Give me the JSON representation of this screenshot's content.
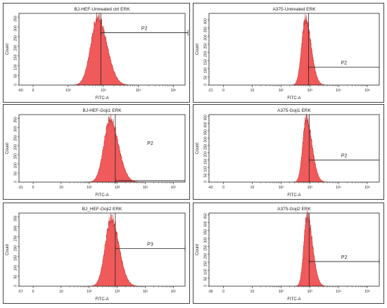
{
  "chart_data": [
    {
      "type": "area",
      "title": "BJ-HEF-Untreated ctrl ERK",
      "xlabel": "FITC-A",
      "ylabel": "Count",
      "x_scale": "log",
      "x_axis_start_label": "-60",
      "x_ticks": [
        "0",
        "10²",
        "10³",
        "10⁴",
        "10⁵"
      ],
      "y_ticks": [
        "0",
        "50",
        "100",
        "150",
        "200",
        "250",
        "300",
        "350"
      ],
      "ylim": [
        0,
        370
      ],
      "histogram": {
        "peak_x": 700,
        "peak_count": 345,
        "sigma_left": 0.2,
        "sigma_right": 0.26
      },
      "gate": {
        "label": "P2",
        "x_start": 850,
        "x_end": 260000,
        "count_level": 270,
        "x_end_open": false
      },
      "marker_x": 850,
      "fill_color": "#f05a5a"
    },
    {
      "type": "area",
      "title": "A375-Untreated ERK",
      "xlabel": "FITC-A",
      "ylabel": "Count",
      "x_scale": "log",
      "x_axis_start_label": "-21",
      "x_ticks": [
        "0",
        "10",
        "10²",
        "10³",
        "10⁴",
        "10⁵"
      ],
      "y_ticks": [
        "0",
        "50",
        "100",
        "150",
        "200",
        "250",
        "300",
        "350",
        "400"
      ],
      "ylim": [
        0,
        440
      ],
      "histogram": {
        "peak_x": 700,
        "peak_count": 400,
        "sigma_left": 0.13,
        "sigma_right": 0.2
      },
      "gate": {
        "label": "P2",
        "x_start": 900,
        "x_end": 260000,
        "count_level": 110,
        "x_end_open": true
      },
      "marker_x": 900,
      "fill_color": "#f05a5a"
    },
    {
      "type": "area",
      "title": "BJ-HEF-Goji1 ERK",
      "xlabel": "FITC-A",
      "ylabel": "Count",
      "x_scale": "log",
      "x_axis_start_label": "-31",
      "x_ticks": [
        "0",
        "10",
        "10²",
        "10³",
        "10⁴",
        "10⁵"
      ],
      "y_ticks": [
        "0",
        "50",
        "100",
        "150",
        "200",
        "250",
        "300",
        "350"
      ],
      "ylim": [
        0,
        370
      ],
      "histogram": {
        "peak_x": 550,
        "peak_count": 340,
        "sigma_left": 0.22,
        "sigma_right": 0.3
      },
      "gate": {
        "label": "P2",
        "x_start": 850,
        "x_end": 260000,
        "count_level": 8,
        "x_end_open": true
      },
      "marker_x": 850,
      "fill_color": "#f05a5a"
    },
    {
      "type": "area",
      "title": "A375-Goji1 ERK",
      "xlabel": "FITC-A",
      "ylabel": "Count",
      "x_scale": "log",
      "x_axis_start_label": "-42",
      "x_ticks": [
        "0",
        "10",
        "10²",
        "10³",
        "10⁴",
        "10⁵"
      ],
      "y_ticks": [
        "0",
        "50",
        "100",
        "150",
        "200",
        "250",
        "300",
        "350",
        "400",
        "450"
      ],
      "ylim": [
        0,
        460
      ],
      "histogram": {
        "peak_x": 750,
        "peak_count": 430,
        "sigma_left": 0.12,
        "sigma_right": 0.2
      },
      "gate": {
        "label": "P2",
        "x_start": 950,
        "x_end": 260000,
        "count_level": 150,
        "x_end_open": true
      },
      "marker_x": 950,
      "fill_color": "#f05a5a"
    },
    {
      "type": "area",
      "title": "BJ_HEF-Goji2 ERK",
      "xlabel": "FITC-A",
      "ylabel": "Count",
      "x_scale": "log",
      "x_axis_start_label": "-57",
      "x_ticks": [
        "0",
        "10",
        "10²",
        "10³",
        "10⁴",
        "10⁵"
      ],
      "y_ticks": [
        "0",
        "50",
        "100",
        "150",
        "200",
        "250",
        "300",
        "350"
      ],
      "ylim": [
        0,
        370
      ],
      "histogram": {
        "peak_x": 600,
        "peak_count": 340,
        "sigma_left": 0.21,
        "sigma_right": 0.28
      },
      "gate": {
        "label": "P3",
        "x_start": 850,
        "x_end": 260000,
        "count_level": 190,
        "x_end_open": false
      },
      "marker_x": 850,
      "fill_color": "#f05a5a"
    },
    {
      "type": "area",
      "title": "A375-Goji2 ERK",
      "xlabel": "FITC-A",
      "ylabel": "Count",
      "x_scale": "log",
      "x_axis_start_label": "-36",
      "x_ticks": [
        "0",
        "10",
        "10²",
        "10³",
        "10⁴",
        "10⁵"
      ],
      "y_ticks": [
        "0",
        "50",
        "100",
        "150",
        "200",
        "250",
        "300",
        "350",
        "400",
        "450"
      ],
      "ylim": [
        0,
        460
      ],
      "histogram": {
        "peak_x": 800,
        "peak_count": 440,
        "sigma_left": 0.11,
        "sigma_right": 0.19
      },
      "gate": {
        "label": "P2",
        "x_start": 950,
        "x_end": 260000,
        "count_level": 155,
        "x_end_open": false
      },
      "marker_x": 950,
      "fill_color": "#f05a5a"
    }
  ]
}
